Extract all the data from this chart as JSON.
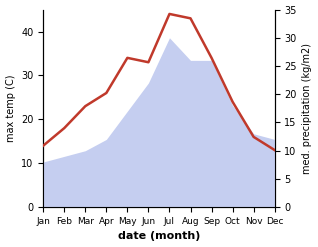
{
  "months": [
    "Jan",
    "Feb",
    "Mar",
    "Apr",
    "May",
    "Jun",
    "Jul",
    "Aug",
    "Sep",
    "Oct",
    "Nov",
    "Dec"
  ],
  "temp": [
    14,
    18,
    23,
    26,
    34,
    33,
    44,
    43,
    34,
    24,
    16,
    13
  ],
  "precip": [
    8,
    9,
    10,
    12,
    17,
    22,
    30,
    26,
    26,
    18,
    13,
    12
  ],
  "temp_color": "#c0392b",
  "precip_fill_color": "#c5cef0",
  "xlabel": "date (month)",
  "ylabel_left": "max temp (C)",
  "ylabel_right": "med. precipitation (kg/m2)",
  "ylim_left": [
    0,
    45
  ],
  "ylim_right": [
    0,
    35
  ],
  "yticks_left": [
    0,
    10,
    20,
    30,
    40
  ],
  "yticks_right": [
    0,
    5,
    10,
    15,
    20,
    25,
    30,
    35
  ],
  "background_color": "#ffffff",
  "temp_linewidth": 1.8,
  "xlabel_fontsize": 8,
  "ylabel_fontsize": 7,
  "tick_fontsize": 7,
  "month_fontsize": 6.5
}
